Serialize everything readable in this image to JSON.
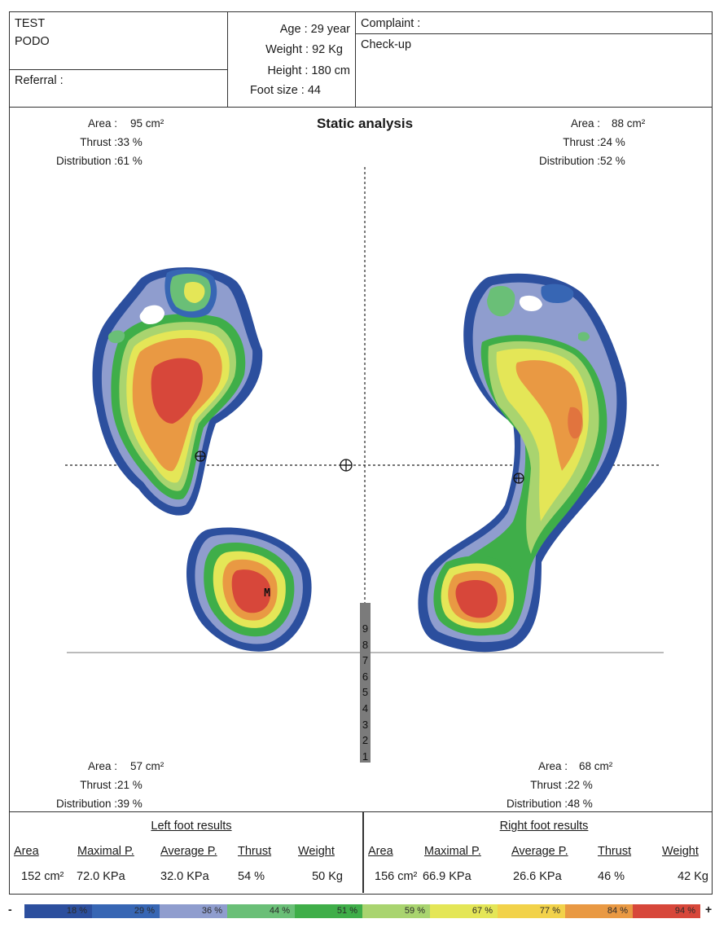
{
  "header": {
    "patient_first": "TEST",
    "patient_last": "PODO",
    "referral_label": "Referral :",
    "age": "Age : 29 year",
    "weight": "Weight : 92 Kg",
    "height": "Height : 180 cm",
    "foot_size": "Foot size : 44",
    "complaint_label": "Complaint :",
    "complaint_value": "Check-up"
  },
  "title": "Static analysis",
  "quadrants": {
    "top_left": {
      "area_label": "Area :",
      "area_value": "95 cm²",
      "thrust_label": "Thrust :",
      "thrust_value": "33 %",
      "distribution_label": "Distribution :",
      "distribution_value": "61 %"
    },
    "top_right": {
      "area_label": "Area :",
      "area_value": "88 cm²",
      "thrust_label": "Thrust :",
      "thrust_value": "24 %",
      "distribution_label": "Distribution :",
      "distribution_value": "52 %"
    },
    "bottom_left": {
      "area_label": "Area :",
      "area_value": "57 cm²",
      "thrust_label": "Thrust :",
      "thrust_value": "21 %",
      "distribution_label": "Distribution :",
      "distribution_value": "39 %"
    },
    "bottom_right": {
      "area_label": "Area :",
      "area_value": "68 cm²",
      "thrust_label": "Thrust :",
      "thrust_value": "22 %",
      "distribution_label": "Distribution :",
      "distribution_value": "48 %"
    }
  },
  "max_pressure_marker": "M",
  "vertical_scale": [
    "9",
    "8",
    "7",
    "6",
    "5",
    "4",
    "3",
    "2",
    "1"
  ],
  "results": {
    "left": {
      "title": "Left foot results",
      "headers": [
        "Area",
        "Maximal P.",
        "Average P.",
        "Thrust",
        "Weight"
      ],
      "values": [
        "152 cm²",
        "72.0 KPa",
        "32.0 KPa",
        "54 %",
        "50 Kg"
      ]
    },
    "right": {
      "title": "Right foot results",
      "headers": [
        "Area",
        "Maximal P.",
        "Average P.",
        "Thrust",
        "Weight"
      ],
      "values": [
        "156 cm²",
        "66.9 KPa",
        "26.6 KPa",
        "46 %",
        "42 Kg"
      ]
    }
  },
  "color_scale": {
    "minus": "-",
    "plus": "+",
    "steps": [
      {
        "label": "18 %",
        "color": "#2c4f9e"
      },
      {
        "label": "29 %",
        "color": "#3766b4"
      },
      {
        "label": "36 %",
        "color": "#8f9dce"
      },
      {
        "label": "44 %",
        "color": "#6abf77"
      },
      {
        "label": "51 %",
        "color": "#3fae49"
      },
      {
        "label": "59 %",
        "color": "#a9d46f"
      },
      {
        "label": "67 %",
        "color": "#e4e657"
      },
      {
        "label": "77 %",
        "color": "#f2d24a"
      },
      {
        "label": "84 %",
        "color": "#e99943"
      },
      {
        "label": "94 %",
        "color": "#d7473a"
      }
    ]
  }
}
